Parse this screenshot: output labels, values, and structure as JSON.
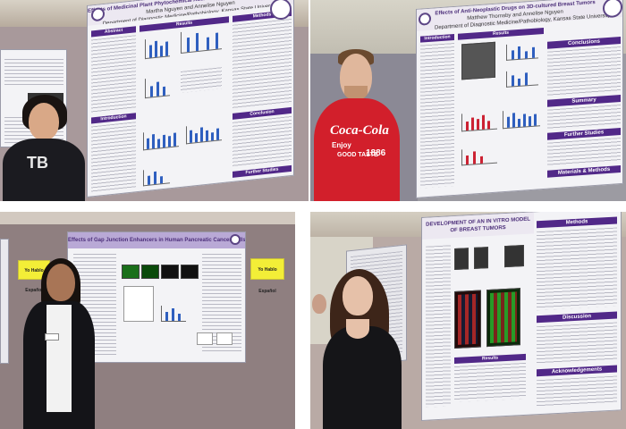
{
  "photos": {
    "p1": {
      "poster_title": "Effects of Medicinal Plant Phytochemical Additives on Human Breast Tumor Cell Lines",
      "poster_authors": "Martha Nguyen and Annelise Nguyen",
      "poster_dept": "Department of Diagnostic Medicine/Pathobiology, Kansas State University",
      "sections": [
        "Abstract",
        "Results",
        "Methods",
        "Conclusion",
        "Introduction",
        "Further Studies"
      ],
      "shirt_text": "TB"
    },
    "p2": {
      "poster_title": "Effects of Anti-Neoplastic Drugs on 3D-cultured Breast Tumors",
      "poster_authors": "Matthew Thornsby and Annelise Nguyen",
      "poster_dept": "Department of Diagnostic Medicine/Pathobiology, Kansas State University",
      "sections": [
        "Introduction",
        "Results",
        "Conclusions",
        "Summary",
        "Further Studies",
        "Materials & Methods"
      ],
      "shirt_brand": "Coca-Cola",
      "shirt_slogan": "Enjoy",
      "shirt_tagline": "GOOD TASTE",
      "shirt_year": "1886"
    },
    "p3": {
      "poster_title": "Effects of Gap Junction Enhancers in Human Pancreatic Cancer Cells",
      "sign_text": "Yo Hablo Español"
    },
    "p4": {
      "poster_title": "DEVELOPMENT OF AN IN VITRO MODEL OF BREAST TUMORS",
      "sections": [
        "Methods",
        "Results",
        "Discussion",
        "Acknowledgements"
      ]
    }
  },
  "colors": {
    "kstate_purple": "#512888",
    "wall_tan": "#a8999b",
    "coke_red": "#d21f2b"
  }
}
